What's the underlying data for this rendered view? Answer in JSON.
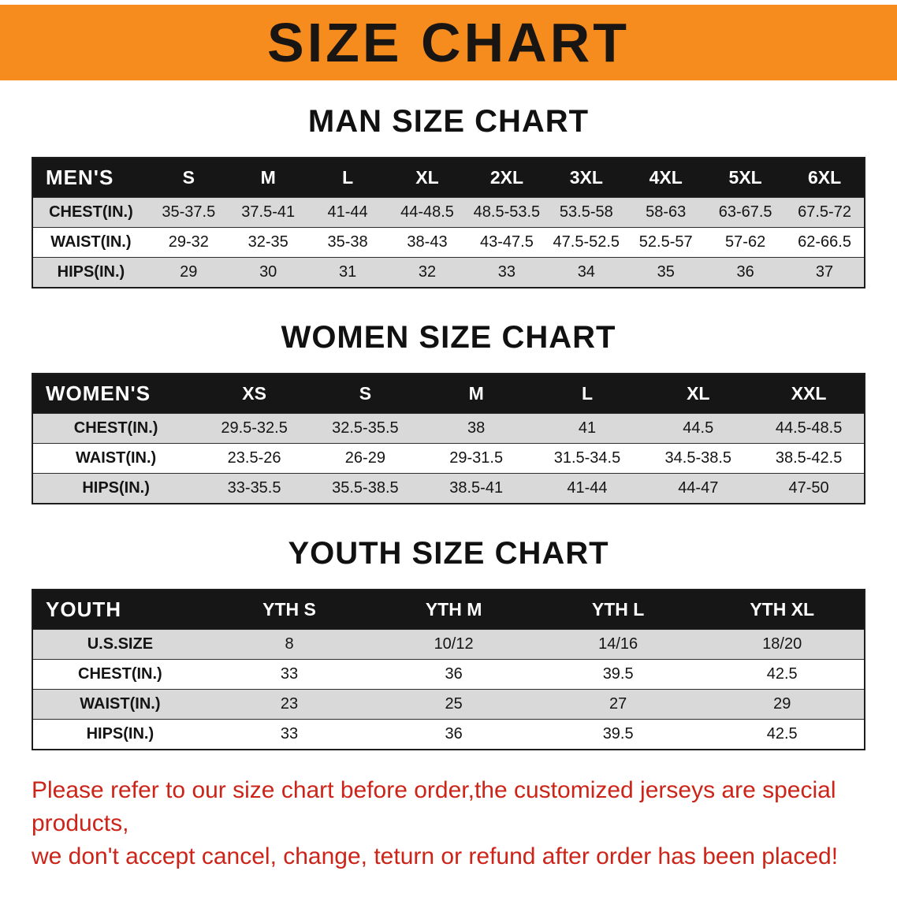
{
  "banner": {
    "title": "SIZE CHART"
  },
  "colors": {
    "banner_bg": "#f68b1e",
    "table_header_bg": "#161616",
    "row_shaded": "#d9d9d9",
    "disclaimer_red": "#cc2418"
  },
  "sections": [
    {
      "name": "men",
      "heading": "MAN SIZE CHART",
      "table": {
        "header": [
          "MEN'S",
          "S",
          "M",
          "L",
          "XL",
          "2XL",
          "3XL",
          "4XL",
          "5XL",
          "6XL"
        ],
        "rows": [
          [
            "CHEST(IN.)",
            "35-37.5",
            "37.5-41",
            "41-44",
            "44-48.5",
            "48.5-53.5",
            "53.5-58",
            "58-63",
            "63-67.5",
            "67.5-72"
          ],
          [
            "WAIST(IN.)",
            "29-32",
            "32-35",
            "35-38",
            "38-43",
            "43-47.5",
            "47.5-52.5",
            "52.5-57",
            "57-62",
            "62-66.5"
          ],
          [
            "HIPS(IN.)",
            "29",
            "30",
            "31",
            "32",
            "33",
            "34",
            "35",
            "36",
            "37"
          ]
        ]
      }
    },
    {
      "name": "women",
      "heading": "WOMEN SIZE CHART",
      "table": {
        "header": [
          "WOMEN'S",
          "XS",
          "S",
          "M",
          "L",
          "XL",
          "XXL"
        ],
        "rows": [
          [
            "CHEST(IN.)",
            "29.5-32.5",
            "32.5-35.5",
            "38",
            "41",
            "44.5",
            "44.5-48.5"
          ],
          [
            "WAIST(IN.)",
            "23.5-26",
            "26-29",
            "29-31.5",
            "31.5-34.5",
            "34.5-38.5",
            "38.5-42.5"
          ],
          [
            "HIPS(IN.)",
            "33-35.5",
            "35.5-38.5",
            "38.5-41",
            "41-44",
            "44-47",
            "47-50"
          ]
        ]
      }
    },
    {
      "name": "youth",
      "heading": "YOUTH SIZE CHART",
      "table": {
        "header": [
          "YOUTH",
          "YTH S",
          "YTH M",
          "YTH L",
          "YTH XL"
        ],
        "rows": [
          [
            "U.S.SIZE",
            "8",
            "10/12",
            "14/16",
            "18/20"
          ],
          [
            "CHEST(IN.)",
            "33",
            "36",
            "39.5",
            "42.5"
          ],
          [
            "WAIST(IN.)",
            "23",
            "25",
            "27",
            "29"
          ],
          [
            "HIPS(IN.)",
            "33",
            "36",
            "39.5",
            "42.5"
          ]
        ]
      }
    }
  ],
  "disclaimer": {
    "line1": "Please refer to our size chart before order,the customized jerseys are special products,",
    "line2": "we don't accept cancel, change, teturn or refund after order has been placed!"
  }
}
